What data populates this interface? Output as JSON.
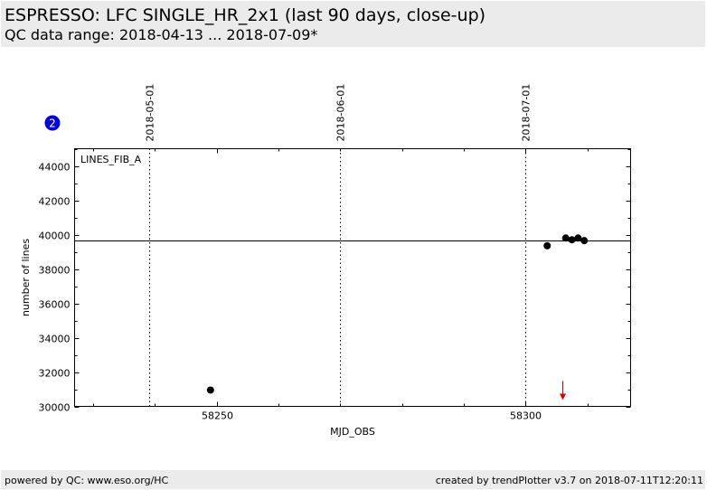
{
  "header": {
    "title": "ESPRESSO: LFC SINGLE_HR_2x1 (last 90 days, close-up)",
    "subtitle": "QC data range: 2018-04-13 ... 2018-07-09*"
  },
  "footer": {
    "left": "powered by QC: www.eso.org/HC",
    "right": "created by trendPlotter v3.7 on 2018-07-11T12:20:11"
  },
  "badge": {
    "label": "2",
    "color": "#0000dd"
  },
  "colors": {
    "points": "#000000",
    "arrow": "#dd0000",
    "reference_line": "#000000"
  },
  "chart_data": {
    "type": "scatter",
    "xlabel": "MJD_OBS",
    "ylabel": "number of lines",
    "panel_label": "LINES_FIB_A",
    "xlim": [
      58227,
      58317
    ],
    "ylim": [
      30000,
      45000
    ],
    "x_ticks": [
      58250,
      58300
    ],
    "y_ticks": [
      30000,
      32000,
      34000,
      36000,
      38000,
      40000,
      42000,
      44000
    ],
    "date_markers": [
      {
        "x": 58239,
        "label": "2018-05-01"
      },
      {
        "x": 58270,
        "label": "2018-06-01"
      },
      {
        "x": 58300,
        "label": "2018-07-01"
      }
    ],
    "reference_line": 39650,
    "series": [
      {
        "x": [
          58249,
          58303.5,
          58306.5,
          58307.5,
          58308.5,
          58309.5
        ],
        "y": [
          30950,
          39350,
          39800,
          39700,
          39800,
          39650
        ]
      }
    ],
    "out_of_range_marker": {
      "x": 58306,
      "direction": "down"
    },
    "grid": false
  }
}
